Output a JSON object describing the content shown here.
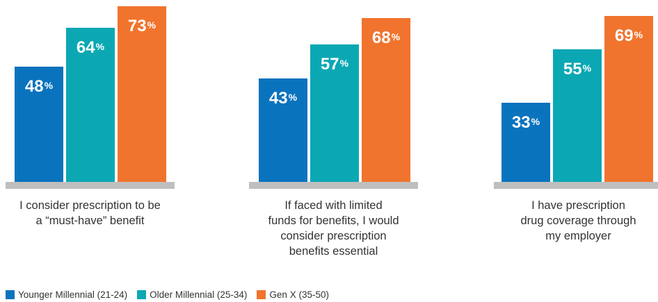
{
  "chart_data": {
    "type": "bar",
    "unit": "%",
    "categories": [
      "I consider prescription to be a “must-have” benefit",
      "If faced with limited funds for benefits, I would consider prescription benefits essential",
      "I have prescription drug coverage through my employer"
    ],
    "category_lines": [
      [
        "I consider prescription to be",
        "a “must-have” benefit"
      ],
      [
        "If faced with limited",
        "funds for benefits, I would",
        "consider prescription",
        "benefits essential"
      ],
      [
        "I have prescription",
        "drug coverage through",
        "my employer"
      ]
    ],
    "series": [
      {
        "name": "Younger Millennial (21-24)",
        "color": "#0a73be",
        "values": [
          48,
          43,
          33
        ]
      },
      {
        "name": "Older Millennial (25-34)",
        "color": "#0ba8b4",
        "values": [
          64,
          57,
          55
        ]
      },
      {
        "name": "Gen X (35-50)",
        "color": "#f0742d",
        "values": [
          73,
          68,
          69
        ]
      }
    ],
    "ylim": [
      0,
      100
    ],
    "grid": false,
    "legend_position": "bottom-left",
    "baseline_color": "#bfbfbf"
  }
}
